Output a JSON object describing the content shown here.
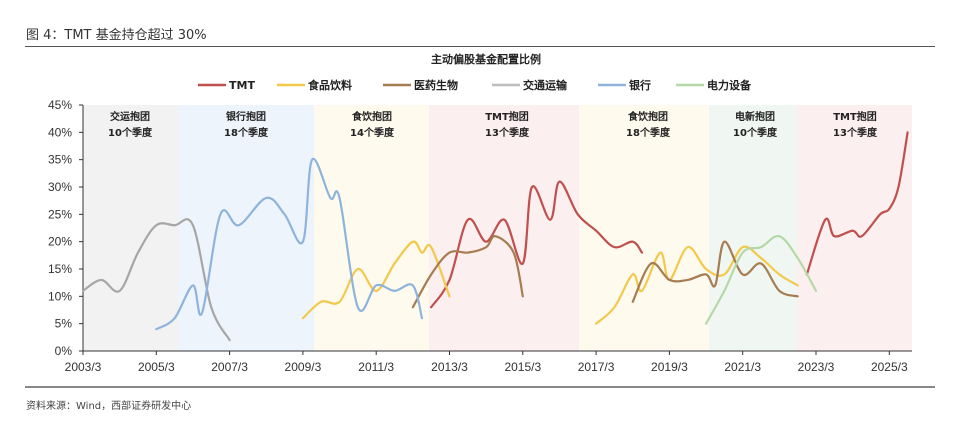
{
  "figure": {
    "title": "图 4：TMT 基金持仓超过 30%",
    "source": "资料来源：Wind，西部证券研发中心"
  },
  "chart_data": {
    "type": "line",
    "title": "主动偏股基金配置比例",
    "xlabel": "",
    "ylabel": "",
    "ylim": [
      0,
      45
    ],
    "yticks": [
      "0%",
      "5%",
      "10%",
      "15%",
      "20%",
      "25%",
      "30%",
      "35%",
      "40%",
      "45%"
    ],
    "xticks": [
      "2003/3",
      "2005/3",
      "2007/3",
      "2009/3",
      "2011/3",
      "2013/3",
      "2015/3",
      "2017/3",
      "2019/3",
      "2021/3",
      "2023/3",
      "2025/3"
    ],
    "legend_position": "top",
    "grid": false,
    "series": [
      {
        "name": "TMT",
        "color": "#c0504d",
        "points": [
          [
            "2012/9",
            8
          ],
          [
            "2013/3",
            13
          ],
          [
            "2013/9",
            24
          ],
          [
            "2014/3",
            20
          ],
          [
            "2014/9",
            24
          ],
          [
            "2015/3",
            16
          ],
          [
            "2015/6",
            30
          ],
          [
            "2015/12",
            24
          ],
          [
            "2016/3",
            31
          ],
          [
            "2016/9",
            25
          ],
          [
            "2017/3",
            22
          ],
          [
            "2017/9",
            19
          ],
          [
            "2018/3",
            20
          ],
          [
            "2018/6",
            18
          ],
          [
            "2022/12",
            14
          ],
          [
            "2023/6",
            24
          ],
          [
            "2023/9",
            21
          ],
          [
            "2024/3",
            22
          ],
          [
            "2024/6",
            21
          ],
          [
            "2024/12",
            25
          ],
          [
            "2025/3",
            26
          ],
          [
            "2025/6",
            30
          ],
          [
            "2025/9",
            40
          ]
        ]
      },
      {
        "name": "食品饮料",
        "color": "#f2c94c",
        "points": [
          [
            "2009/3",
            6
          ],
          [
            "2009/9",
            9
          ],
          [
            "2010/3",
            9
          ],
          [
            "2010/9",
            15
          ],
          [
            "2011/3",
            11
          ],
          [
            "2011/9",
            16
          ],
          [
            "2012/3",
            20
          ],
          [
            "2012/6",
            18
          ],
          [
            "2012/9",
            19
          ],
          [
            "2013/3",
            10
          ],
          [
            "2017/3",
            5
          ],
          [
            "2017/9",
            8
          ],
          [
            "2018/3",
            14
          ],
          [
            "2018/6",
            11
          ],
          [
            "2018/12",
            18
          ],
          [
            "2019/3",
            13
          ],
          [
            "2019/9",
            19
          ],
          [
            "2020/3",
            15
          ],
          [
            "2020/9",
            14
          ],
          [
            "2021/3",
            19
          ],
          [
            "2021/9",
            17
          ],
          [
            "2022/3",
            14
          ],
          [
            "2022/9",
            12
          ]
        ]
      },
      {
        "name": "医药生物",
        "color": "#a67c52",
        "points": [
          [
            "2012/3",
            8
          ],
          [
            "2012/9",
            14
          ],
          [
            "2013/3",
            18
          ],
          [
            "2013/9",
            18
          ],
          [
            "2014/3",
            19
          ],
          [
            "2014/6",
            21
          ],
          [
            "2014/12",
            18
          ],
          [
            "2015/3",
            10
          ],
          [
            "2018/3",
            9
          ],
          [
            "2018/9",
            16
          ],
          [
            "2019/3",
            13
          ],
          [
            "2019/9",
            13
          ],
          [
            "2020/3",
            14
          ],
          [
            "2020/6",
            12
          ],
          [
            "2020/9",
            20
          ],
          [
            "2021/3",
            14
          ],
          [
            "2021/9",
            16
          ],
          [
            "2022/3",
            11
          ],
          [
            "2022/9",
            10
          ]
        ]
      },
      {
        "name": "交通运输",
        "color": "#a6a6a6",
        "points": [
          [
            "2003/3",
            11
          ],
          [
            "2003/9",
            13
          ],
          [
            "2004/3",
            11
          ],
          [
            "2004/9",
            18
          ],
          [
            "2005/3",
            23
          ],
          [
            "2005/9",
            23
          ],
          [
            "2006/3",
            23
          ],
          [
            "2006/9",
            8
          ],
          [
            "2007/3",
            2
          ]
        ]
      },
      {
        "name": "银行",
        "color": "#8fb4dc",
        "points": [
          [
            "2005/3",
            4
          ],
          [
            "2005/9",
            6
          ],
          [
            "2006/3",
            12
          ],
          [
            "2006/6",
            7
          ],
          [
            "2006/12",
            25
          ],
          [
            "2007/6",
            23
          ],
          [
            "2008/3",
            28
          ],
          [
            "2008/9",
            25
          ],
          [
            "2009/3",
            20
          ],
          [
            "2009/6",
            35
          ],
          [
            "2009/12",
            28
          ],
          [
            "2010/3",
            28
          ],
          [
            "2010/9",
            8
          ],
          [
            "2011/3",
            12
          ],
          [
            "2011/9",
            11
          ],
          [
            "2012/3",
            12
          ],
          [
            "2012/6",
            6
          ]
        ]
      },
      {
        "name": "电力设备",
        "color": "#b6d7a8",
        "points": [
          [
            "2020/3",
            5
          ],
          [
            "2020/9",
            11
          ],
          [
            "2021/3",
            18
          ],
          [
            "2021/9",
            19
          ],
          [
            "2022/3",
            21
          ],
          [
            "2022/9",
            17
          ],
          [
            "2023/3",
            11
          ]
        ]
      }
    ],
    "annotations": [
      {
        "label": "交运抱团",
        "sub": "10个季度",
        "color": "#f2f2f2"
      },
      {
        "label": "银行抱团",
        "sub": "18个季度",
        "color": "#eef4fb"
      },
      {
        "label": "食饮抱团",
        "sub": "14个季度",
        "color": "#fefaee"
      },
      {
        "label": "TMT抱团",
        "sub": "13个季度",
        "color": "#fcefef"
      },
      {
        "label": "食饮抱团",
        "sub": "18个季度",
        "color": "#fefaee"
      },
      {
        "label": "电新抱团",
        "sub": "10个季度",
        "color": "#f0f7f2"
      },
      {
        "label": "TMT抱团",
        "sub": "13个季度",
        "color": "#fcefef"
      }
    ]
  }
}
